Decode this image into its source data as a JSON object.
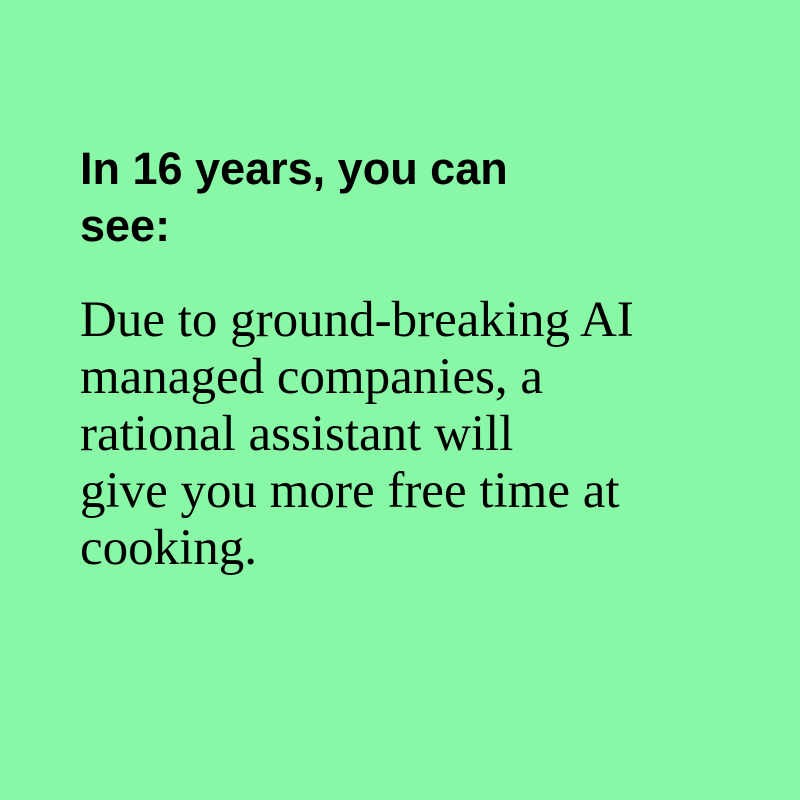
{
  "colors": {
    "background": "#88f7a6",
    "text": "#000000"
  },
  "heading": {
    "lines": [
      "In 16 years, you can",
      "see:"
    ]
  },
  "body": {
    "lines": [
      "Due to ground-breaking AI",
      "managed companies, a",
      "rational assistant will",
      "give you more free time at",
      "cooking."
    ]
  }
}
